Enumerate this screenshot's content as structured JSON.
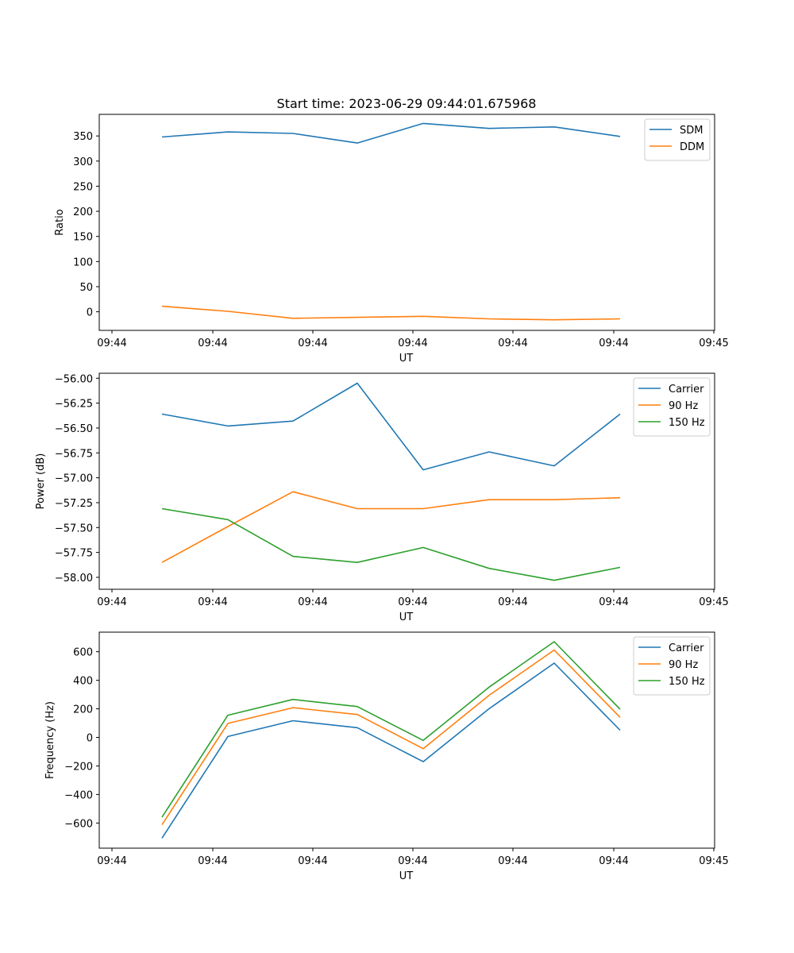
{
  "figure": {
    "title": "Start time: 2023-06-29 09:44:01.675968"
  },
  "x_tick_labels": [
    "09:44",
    "09:44",
    "09:44",
    "09:44",
    "09:44",
    "09:44",
    "09:45"
  ],
  "chart_data": [
    {
      "type": "line",
      "title": "Start time: 2023-06-29 09:44:01.675968",
      "xlabel": "UT",
      "ylabel": "Ratio",
      "ylim": [
        -37,
        393
      ],
      "yticks": [
        0,
        50,
        100,
        150,
        200,
        250,
        300,
        350
      ],
      "legend_position": "top-right",
      "grid": false,
      "series": [
        {
          "name": "SDM",
          "color": "#1f77b4",
          "values": [
            348,
            358,
            355,
            336,
            375,
            365,
            368,
            349
          ]
        },
        {
          "name": "DDM",
          "color": "#ff7f0e",
          "values": [
            11,
            1,
            -13,
            -11,
            -9,
            -14,
            -16,
            -14
          ]
        }
      ]
    },
    {
      "type": "line",
      "xlabel": "UT",
      "ylabel": "Power (dB)",
      "ylim": [
        -58.12,
        -55.95
      ],
      "yticks": [
        -56.0,
        -56.25,
        -56.5,
        -56.75,
        -57.0,
        -57.25,
        -57.5,
        -57.75,
        -58.0
      ],
      "legend_position": "top-right",
      "grid": false,
      "series": [
        {
          "name": "Carrier",
          "color": "#1f77b4",
          "values": [
            -56.36,
            -56.48,
            -56.43,
            -56.05,
            -56.92,
            -56.74,
            -56.88,
            -56.36
          ]
        },
        {
          "name": "90 Hz",
          "color": "#ff7f0e",
          "values": [
            -57.85,
            -57.49,
            -57.14,
            -57.31,
            -57.31,
            -57.22,
            -57.22,
            -57.2
          ]
        },
        {
          "name": "150 Hz",
          "color": "#2ca02c",
          "values": [
            -57.31,
            -57.42,
            -57.79,
            -57.85,
            -57.7,
            -57.91,
            -58.03,
            -57.9
          ]
        }
      ]
    },
    {
      "type": "line",
      "xlabel": "UT",
      "ylabel": "Frequency (Hz)",
      "ylim": [
        -776,
        737
      ],
      "yticks": [
        600,
        400,
        200,
        0,
        -200,
        -400,
        -600
      ],
      "legend_position": "top-right",
      "grid": false,
      "series": [
        {
          "name": "Carrier",
          "color": "#1f77b4",
          "values": [
            -706,
            6,
            117,
            68,
            -170,
            201,
            520,
            50
          ]
        },
        {
          "name": "90 Hz",
          "color": "#ff7f0e",
          "values": [
            -612,
            98,
            208,
            160,
            -79,
            295,
            612,
            140
          ]
        },
        {
          "name": "150 Hz",
          "color": "#2ca02c",
          "values": [
            -559,
            155,
            266,
            216,
            -21,
            352,
            670,
            197
          ]
        }
      ]
    }
  ]
}
